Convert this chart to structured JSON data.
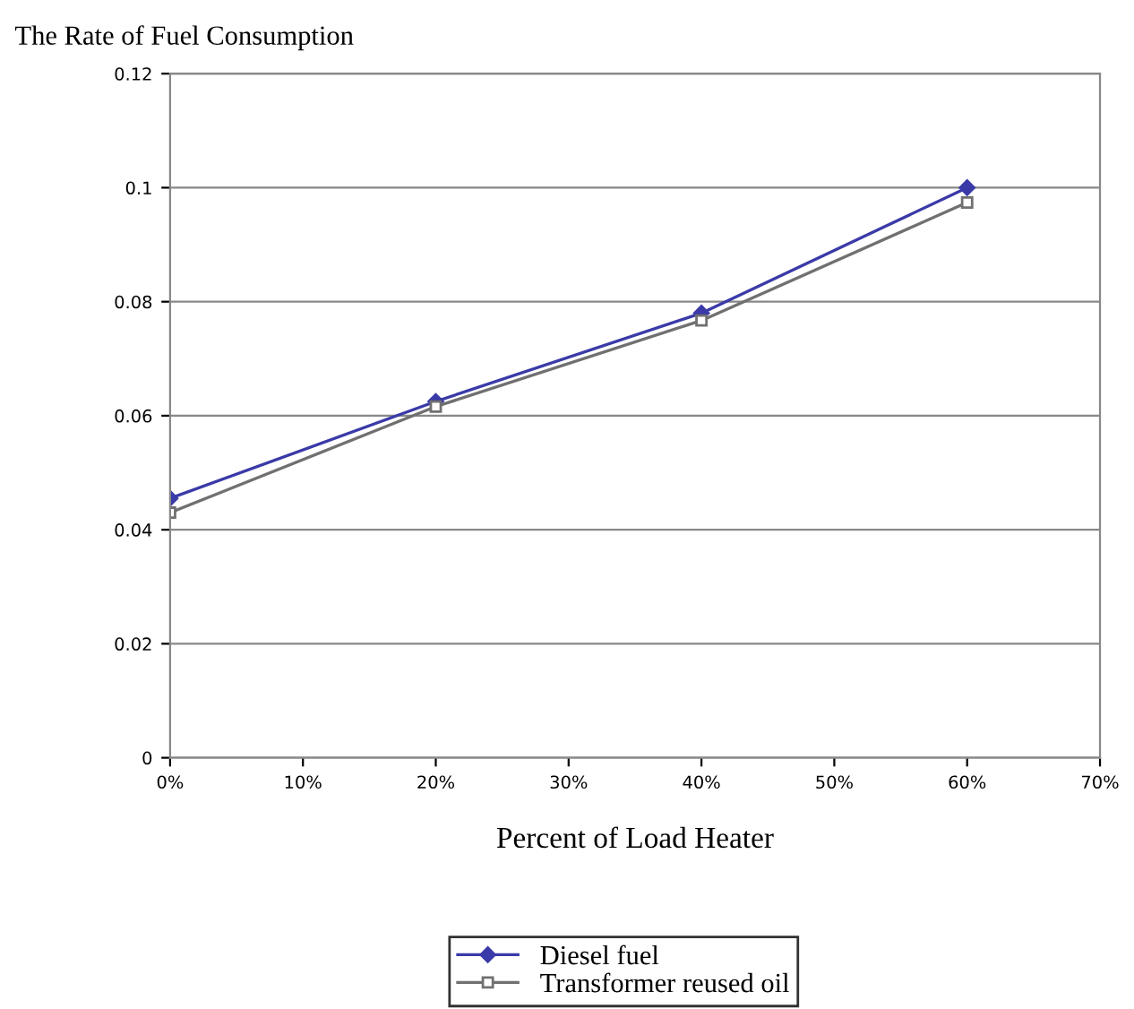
{
  "chart_data": {
    "type": "line",
    "ylabel": "The Rate of Fuel Consumption",
    "xlabel": "Percent of Load Heater",
    "x": [
      0,
      20,
      40,
      60
    ],
    "series": [
      {
        "name": "Diesel fuel",
        "color": "#3a3aa8",
        "values": [
          0.0455,
          0.0625,
          0.078,
          0.1
        ],
        "marker": "diamond"
      },
      {
        "name": "Transformer reused oil",
        "color": "#707070",
        "values": [
          0.043,
          0.0616,
          0.0767,
          0.0974
        ],
        "marker": "square"
      }
    ],
    "xlim": [
      0,
      70
    ],
    "xticks": [
      {
        "value": 0,
        "label": "0%"
      },
      {
        "value": 10,
        "label": "10%"
      },
      {
        "value": 20,
        "label": "20%"
      },
      {
        "value": 30,
        "label": "30%"
      },
      {
        "value": 40,
        "label": "40%"
      },
      {
        "value": 50,
        "label": "50%"
      },
      {
        "value": 60,
        "label": "60%"
      },
      {
        "value": 70,
        "label": "70%"
      }
    ],
    "ylim": [
      0,
      0.12
    ],
    "yticks": [
      0,
      0.02,
      0.04,
      0.06,
      0.08,
      0.1,
      0.12
    ],
    "grid": "y",
    "legend": "bottom",
    "line_style": "solid"
  }
}
